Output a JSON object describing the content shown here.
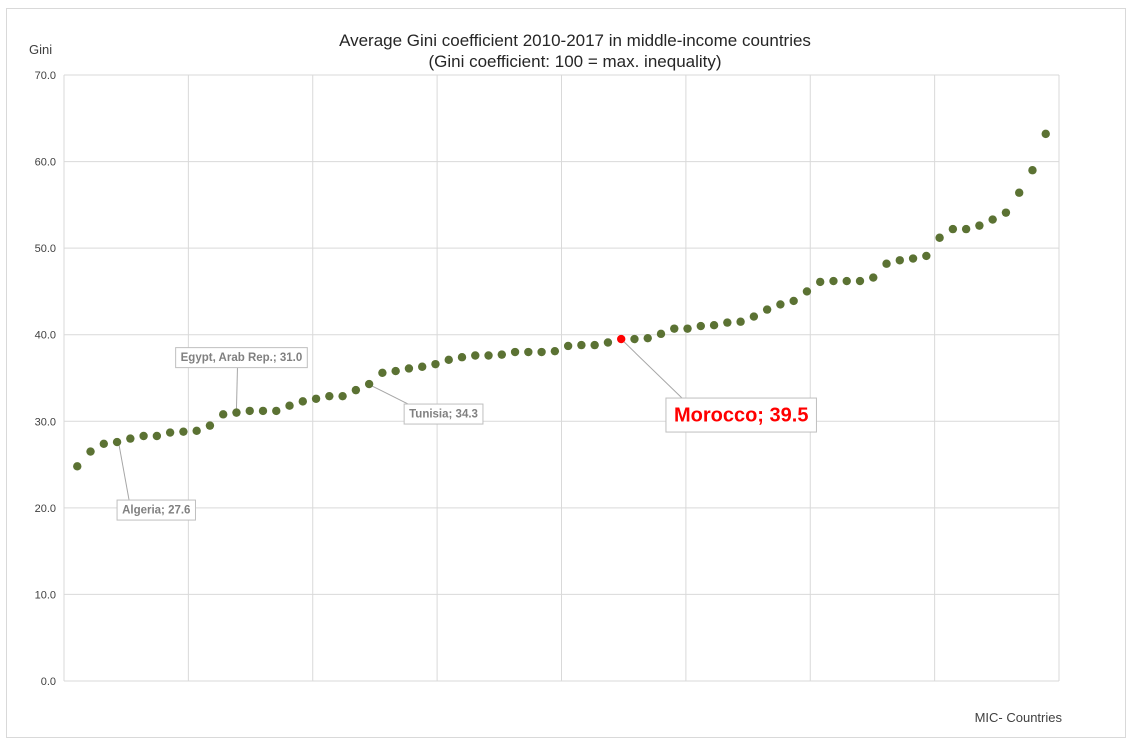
{
  "chart_data": {
    "type": "scatter",
    "title": "Average Gini coefficient 2010-2017 in middle-income countries",
    "subtitle": "(Gini coefficient:  100 = max. inequality)",
    "xlabel": "MIC- Countries",
    "ylabel": "Gini",
    "ylim": [
      0,
      70
    ],
    "yticks": [
      "0.0",
      "10.0",
      "20.0",
      "30.0",
      "40.0",
      "50.0",
      "60.0",
      "70.0"
    ],
    "xlim": [
      0,
      75
    ],
    "grid": true,
    "legend": "none",
    "point_color": "#5b7233",
    "highlight_color": "#ff0000",
    "x": [
      1,
      2,
      3,
      4,
      5,
      6,
      7,
      8,
      9,
      10,
      11,
      12,
      13,
      14,
      15,
      16,
      17,
      18,
      19,
      20,
      21,
      22,
      23,
      24,
      25,
      26,
      27,
      28,
      29,
      30,
      31,
      32,
      33,
      34,
      35,
      36,
      37,
      38,
      39,
      40,
      41,
      42,
      43,
      44,
      45,
      46,
      47,
      48,
      49,
      50,
      51,
      52,
      53,
      54,
      55,
      56,
      57,
      58,
      59,
      60,
      61,
      62,
      63,
      64,
      65,
      66,
      67,
      68,
      69,
      70,
      71,
      72,
      73,
      74
    ],
    "values": [
      24.8,
      26.5,
      27.4,
      27.6,
      28.0,
      28.3,
      28.3,
      28.7,
      28.8,
      28.9,
      29.5,
      30.8,
      31.0,
      31.2,
      31.2,
      31.2,
      31.8,
      32.3,
      32.6,
      32.9,
      32.9,
      33.6,
      34.3,
      35.6,
      35.8,
      36.1,
      36.3,
      36.6,
      37.1,
      37.4,
      37.6,
      37.6,
      37.7,
      38.0,
      38.0,
      38.0,
      38.1,
      38.7,
      38.8,
      38.8,
      39.1,
      39.5,
      39.5,
      39.6,
      40.1,
      40.7,
      40.7,
      41.0,
      41.1,
      41.4,
      41.5,
      42.1,
      42.9,
      43.5,
      43.9,
      45.0,
      46.1,
      46.2,
      46.2,
      46.2,
      46.6,
      48.2,
      48.6,
      48.8,
      49.1,
      51.2,
      52.2,
      52.2,
      52.6,
      53.3,
      54.1,
      56.4,
      59.0,
      63.2
    ],
    "highlight_index": 41,
    "annotations": [
      {
        "label": "Algeria; 27.6",
        "point_index": 3
      },
      {
        "label": "Egypt, Arab Rep.; 31.0",
        "point_index": 12
      },
      {
        "label": "Tunisia; 34.3",
        "point_index": 22
      },
      {
        "label": "Morocco; 39.5",
        "point_index": 41,
        "highlight": true
      }
    ]
  }
}
